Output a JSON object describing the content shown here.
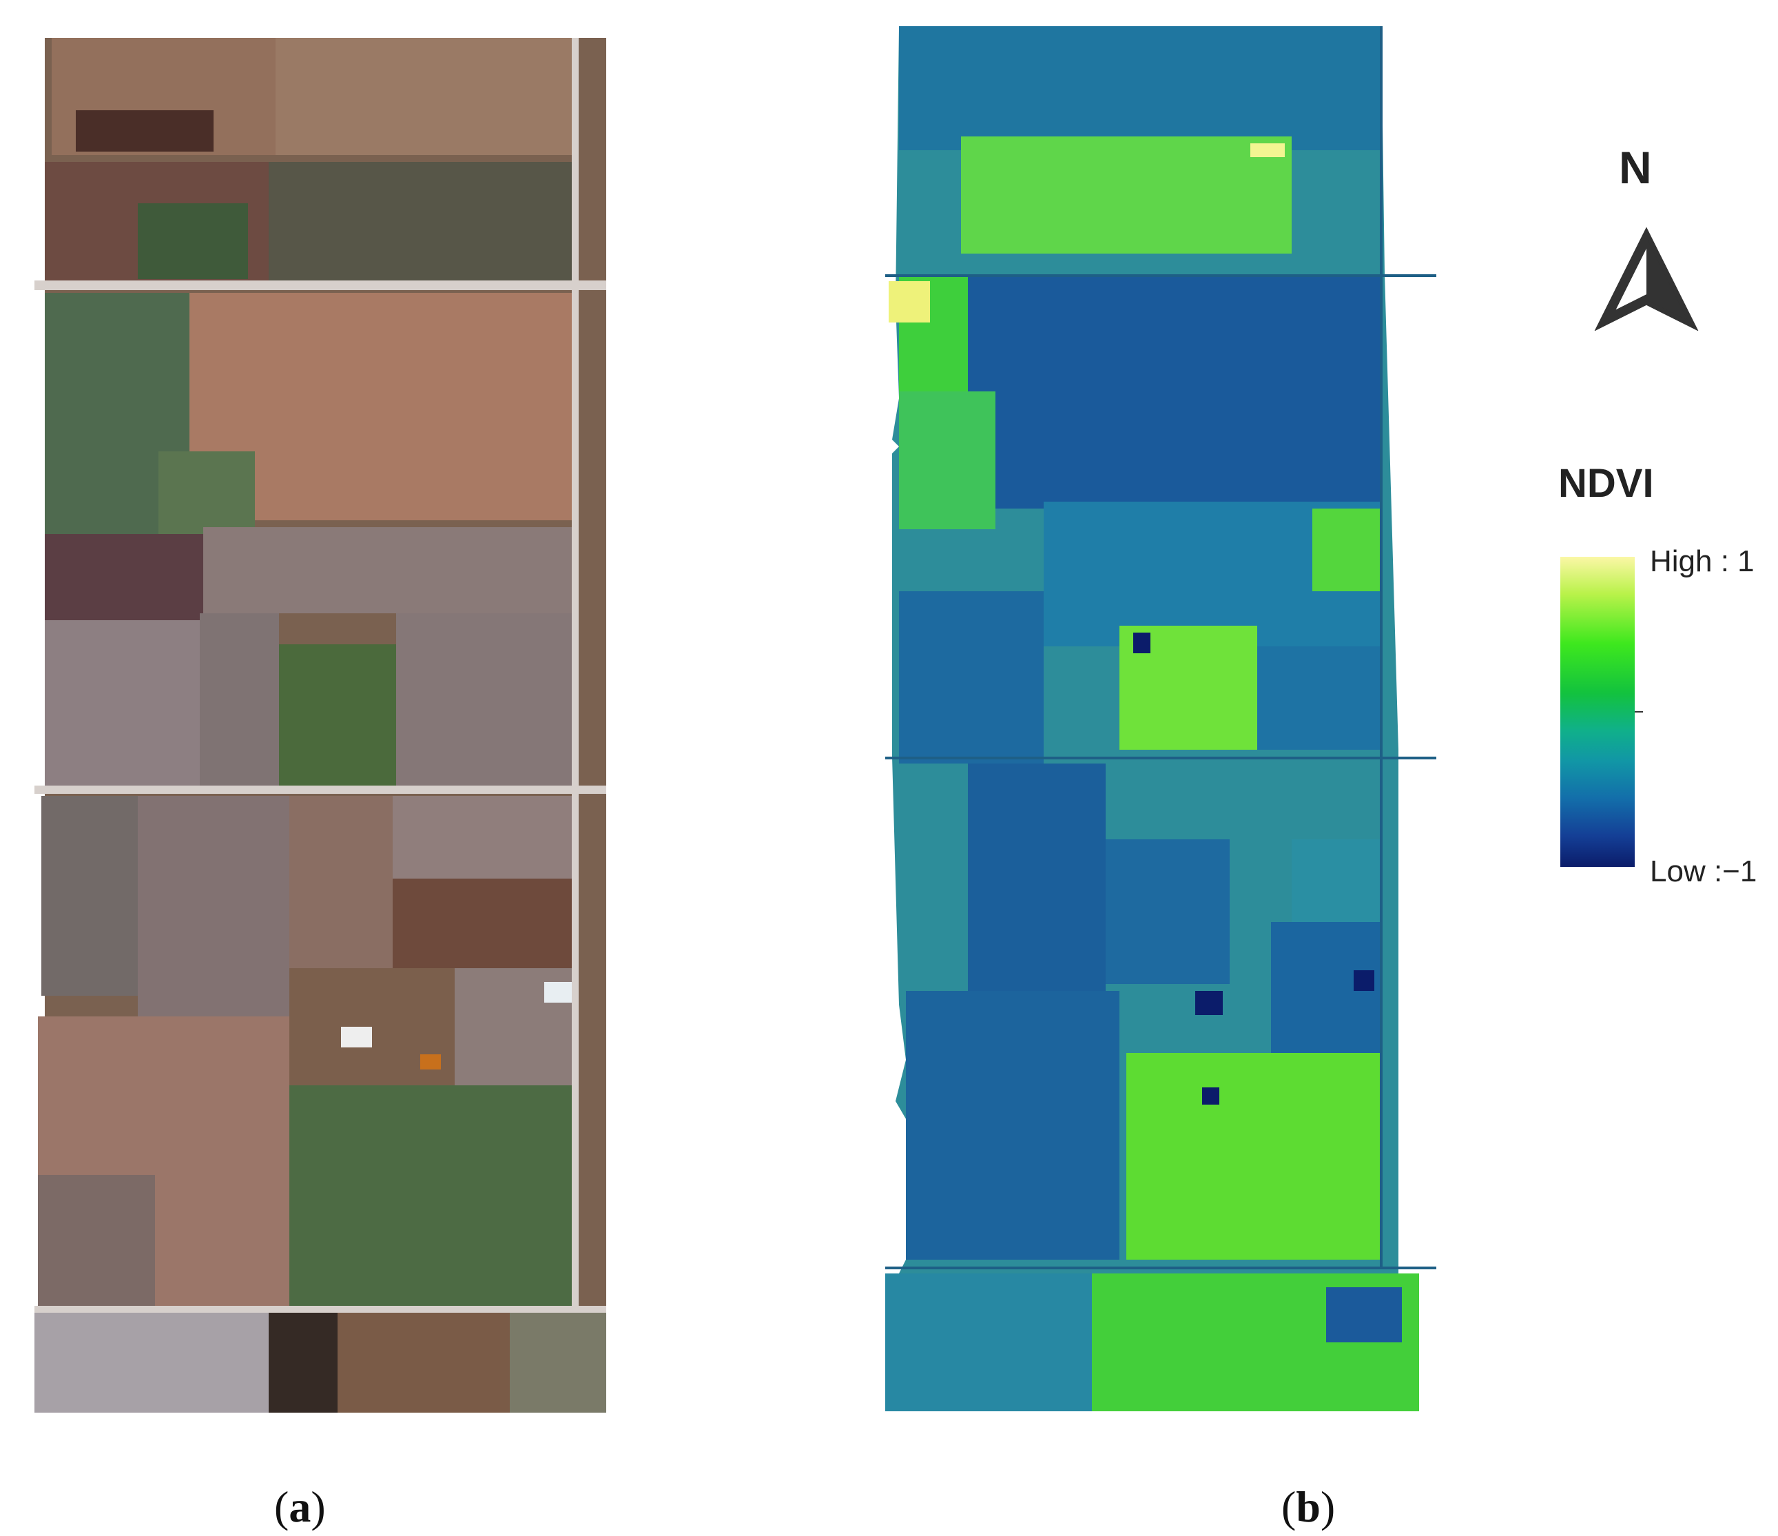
{
  "panels": [
    {
      "id": "a",
      "caption_open": "(",
      "caption_letter": "a",
      "caption_close": ")"
    },
    {
      "id": "b",
      "caption_open": "(",
      "caption_letter": "b",
      "caption_close": ")"
    }
  ],
  "north_arrow": {
    "label": "N",
    "icon": "north-arrow-icon"
  },
  "legend": {
    "title": "NDVI",
    "high_label": "High : 1",
    "low_label": "Low :−1",
    "range": [
      -1,
      1
    ],
    "colors": {
      "high": "#fbf7a6",
      "mid": "#12c23e",
      "low": "#0b1c6a"
    }
  }
}
